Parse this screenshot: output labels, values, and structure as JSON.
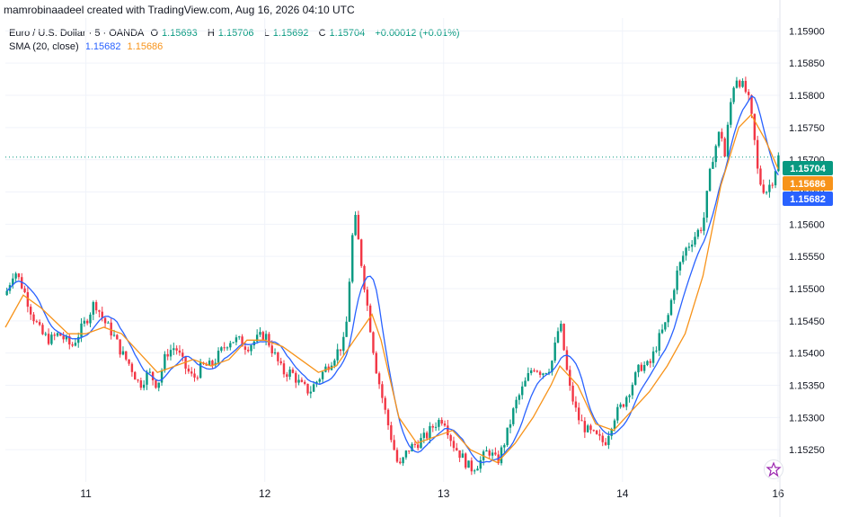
{
  "header": {
    "attribution": "mamrobinaadeel created with TradingView.com, Aug 16, 2026 04:10 UTC"
  },
  "legend": {
    "symbol": "Euro / U.S. Dollar · 5 · OANDA",
    "open_label": "O",
    "open": "1.15693",
    "high_label": "H",
    "high": "1.15706",
    "low_label": "L",
    "low": "1.15692",
    "close_label": "C",
    "close": "1.15704",
    "change": "+0.00012 (+0.01%)",
    "sma_label": "SMA (20, close)",
    "sma_fast_value": "1.15682",
    "sma_slow_value": "1.15686"
  },
  "colors": {
    "up": "#089981",
    "down": "#f23645",
    "sma_fast": "#2962ff",
    "sma_slow": "#f7931a",
    "price_label": "#089981",
    "grid": "#f0f3fa",
    "axis_text": "#131722"
  },
  "icons": {
    "tradingview_logo": "tv-logo-icon"
  },
  "chart_data": {
    "type": "candlestick",
    "ylim": [
      1.152,
      1.1592
    ],
    "y_ticks": [
      "1.15250",
      "1.15300",
      "1.15350",
      "1.15400",
      "1.15450",
      "1.15500",
      "1.15550",
      "1.15600",
      "1.15650",
      "1.15700",
      "1.15750",
      "1.15800",
      "1.15850",
      "1.15900"
    ],
    "x_ticks": [
      {
        "label": "11",
        "x": 0.0
      },
      {
        "label": "12",
        "x": 1.0
      },
      {
        "label": "13",
        "x": 2.0
      },
      {
        "label": "14",
        "x": 3.0
      },
      {
        "label": "16",
        "x": 3.87
      }
    ],
    "x_range": [
      -0.45,
      3.88
    ],
    "price_path": [
      [
        -0.45,
        1.1549
      ],
      [
        -0.4,
        1.1553
      ],
      [
        -0.35,
        1.155
      ],
      [
        -0.3,
        1.1546
      ],
      [
        -0.25,
        1.1543
      ],
      [
        -0.2,
        1.1542
      ],
      [
        -0.15,
        1.1543
      ],
      [
        -0.08,
        1.1541
      ],
      [
        0.0,
        1.1545
      ],
      [
        0.05,
        1.1548
      ],
      [
        0.1,
        1.1545
      ],
      [
        0.15,
        1.1543
      ],
      [
        0.2,
        1.154
      ],
      [
        0.25,
        1.1538
      ],
      [
        0.3,
        1.1535
      ],
      [
        0.35,
        1.1537
      ],
      [
        0.4,
        1.1535
      ],
      [
        0.45,
        1.154
      ],
      [
        0.5,
        1.1541
      ],
      [
        0.55,
        1.1538
      ],
      [
        0.6,
        1.1536
      ],
      [
        0.65,
        1.1538
      ],
      [
        0.7,
        1.1538
      ],
      [
        0.75,
        1.154
      ],
      [
        0.8,
        1.1542
      ],
      [
        0.85,
        1.1542
      ],
      [
        0.9,
        1.1541
      ],
      [
        1.0,
        1.1543
      ],
      [
        1.05,
        1.154
      ],
      [
        1.1,
        1.1537
      ],
      [
        1.15,
        1.1537
      ],
      [
        1.2,
        1.1535
      ],
      [
        1.25,
        1.1534
      ],
      [
        1.3,
        1.1536
      ],
      [
        1.35,
        1.1538
      ],
      [
        1.4,
        1.154
      ],
      [
        1.45,
        1.1542
      ],
      [
        1.5,
        1.1562
      ],
      [
        1.53,
        1.1556
      ],
      [
        1.57,
        1.1548
      ],
      [
        1.62,
        1.1538
      ],
      [
        1.68,
        1.153
      ],
      [
        1.75,
        1.1522
      ],
      [
        1.8,
        1.1525
      ],
      [
        1.85,
        1.1526
      ],
      [
        1.9,
        1.1527
      ],
      [
        1.95,
        1.1529
      ],
      [
        2.0,
        1.153
      ],
      [
        2.05,
        1.1526
      ],
      [
        2.1,
        1.1524
      ],
      [
        2.15,
        1.1522
      ],
      [
        2.2,
        1.1523
      ],
      [
        2.25,
        1.1525
      ],
      [
        2.3,
        1.1523
      ],
      [
        2.35,
        1.1527
      ],
      [
        2.4,
        1.1532
      ],
      [
        2.45,
        1.1535
      ],
      [
        2.5,
        1.1538
      ],
      [
        2.55,
        1.1537
      ],
      [
        2.6,
        1.1538
      ],
      [
        2.63,
        1.1542
      ],
      [
        2.65,
        1.1545
      ],
      [
        2.7,
        1.1535
      ],
      [
        2.75,
        1.153
      ],
      [
        2.8,
        1.1528
      ],
      [
        2.85,
        1.1527
      ],
      [
        2.9,
        1.1526
      ],
      [
        2.95,
        1.153
      ],
      [
        3.0,
        1.1532
      ],
      [
        3.05,
        1.1535
      ],
      [
        3.1,
        1.1538
      ],
      [
        3.15,
        1.1538
      ],
      [
        3.2,
        1.1542
      ],
      [
        3.25,
        1.1545
      ],
      [
        3.3,
        1.1552
      ],
      [
        3.35,
        1.1556
      ],
      [
        3.4,
        1.1558
      ],
      [
        3.45,
        1.156
      ],
      [
        3.5,
        1.157
      ],
      [
        3.55,
        1.1575
      ],
      [
        3.57,
        1.157
      ],
      [
        3.6,
        1.1578
      ],
      [
        3.63,
        1.1583
      ],
      [
        3.66,
        1.1582
      ],
      [
        3.7,
        1.158
      ],
      [
        3.73,
        1.1575
      ],
      [
        3.76,
        1.1567
      ],
      [
        3.8,
        1.1565
      ],
      [
        3.84,
        1.1567
      ],
      [
        3.87,
        1.15704
      ]
    ],
    "sma_slow_path": [
      [
        -0.45,
        1.1544
      ],
      [
        -0.35,
        1.1549
      ],
      [
        -0.25,
        1.1547
      ],
      [
        -0.1,
        1.1543
      ],
      [
        0.0,
        1.1543
      ],
      [
        0.1,
        1.1544
      ],
      [
        0.2,
        1.1543
      ],
      [
        0.3,
        1.154
      ],
      [
        0.4,
        1.1537
      ],
      [
        0.5,
        1.1538
      ],
      [
        0.6,
        1.1539
      ],
      [
        0.7,
        1.1538
      ],
      [
        0.8,
        1.1539
      ],
      [
        0.9,
        1.1542
      ],
      [
        1.0,
        1.1542
      ],
      [
        1.1,
        1.1541
      ],
      [
        1.2,
        1.1539
      ],
      [
        1.3,
        1.1537
      ],
      [
        1.4,
        1.1538
      ],
      [
        1.5,
        1.1542
      ],
      [
        1.6,
        1.1546
      ],
      [
        1.65,
        1.1542
      ],
      [
        1.7,
        1.1536
      ],
      [
        1.75,
        1.153
      ],
      [
        1.85,
        1.1526
      ],
      [
        1.95,
        1.1527
      ],
      [
        2.05,
        1.1528
      ],
      [
        2.15,
        1.1525
      ],
      [
        2.3,
        1.1523
      ],
      [
        2.4,
        1.1526
      ],
      [
        2.5,
        1.153
      ],
      [
        2.6,
        1.1535
      ],
      [
        2.65,
        1.1538
      ],
      [
        2.75,
        1.1535
      ],
      [
        2.85,
        1.1529
      ],
      [
        2.95,
        1.1528
      ],
      [
        3.05,
        1.1531
      ],
      [
        3.15,
        1.1534
      ],
      [
        3.25,
        1.1538
      ],
      [
        3.35,
        1.1543
      ],
      [
        3.45,
        1.1552
      ],
      [
        3.55,
        1.1566
      ],
      [
        3.65,
        1.1575
      ],
      [
        3.72,
        1.1577
      ],
      [
        3.8,
        1.1573
      ],
      [
        3.87,
        1.15686
      ]
    ],
    "last_price_labels": [
      {
        "text": "1.15704",
        "value": 1.15704,
        "color": "#089981"
      },
      {
        "text": "1.15686",
        "value": 1.15686,
        "color": "#f7931a"
      },
      {
        "text": "1.15682",
        "value": 1.15682,
        "color": "#2962ff"
      }
    ]
  }
}
